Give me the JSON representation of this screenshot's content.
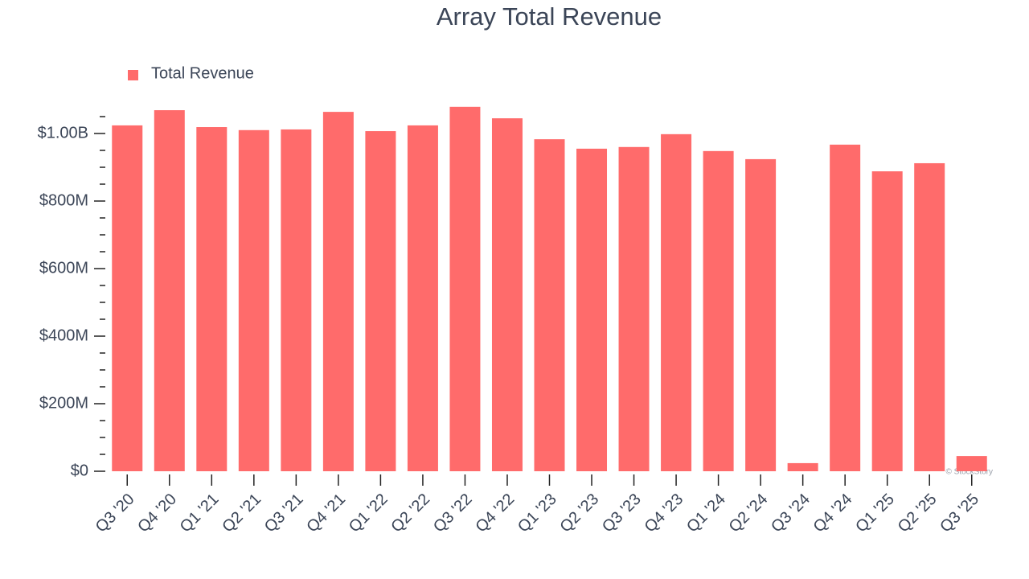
{
  "chart_data": {
    "type": "bar",
    "title": "Array Total Revenue",
    "categories": [
      "Q3 '20",
      "Q4 '20",
      "Q1 '21",
      "Q2 '21",
      "Q3 '21",
      "Q4 '21",
      "Q1 '22",
      "Q2 '22",
      "Q3 '22",
      "Q4 '22",
      "Q1 '23",
      "Q2 '23",
      "Q3 '23",
      "Q4 '23",
      "Q1 '24",
      "Q2 '24",
      "Q3 '24",
      "Q4 '24",
      "Q1 '25",
      "Q2 '25",
      "Q3 '25"
    ],
    "series": [
      {
        "name": "Total Revenue",
        "color": "#ff6b6b",
        "values": [
          1024000000,
          1069000000,
          1019000000,
          1010000000,
          1012000000,
          1064000000,
          1007000000,
          1024000000,
          1079000000,
          1045000000,
          983000000,
          955000000,
          960000000,
          998000000,
          948000000,
          924000000,
          24000000,
          967000000,
          888000000,
          912000000,
          45000000
        ]
      }
    ],
    "ylim": [
      0,
      1100000000
    ],
    "yticks": [
      {
        "value": 0,
        "label": "$0"
      },
      {
        "value": 200000000,
        "label": "$200M"
      },
      {
        "value": 400000000,
        "label": "$400M"
      },
      {
        "value": 600000000,
        "label": "$600M"
      },
      {
        "value": 800000000,
        "label": "$800M"
      },
      {
        "value": 1000000000,
        "label": "$1.00B"
      }
    ],
    "yticks_minor": [
      50000000,
      100000000,
      150000000,
      250000000,
      300000000,
      350000000,
      450000000,
      500000000,
      550000000,
      650000000,
      700000000,
      750000000,
      850000000,
      900000000,
      950000000,
      1050000000
    ],
    "legend": "top-left",
    "watermark": "© StockStory"
  }
}
